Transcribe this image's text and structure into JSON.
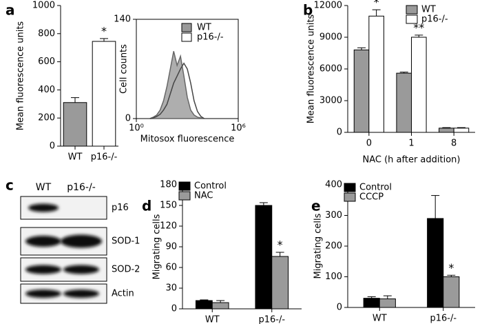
{
  "chart_data": [
    {
      "type": "bar",
      "panel": "a",
      "ylabel": "Mean fluorescence units",
      "categories": [
        "WT",
        "p16-/-"
      ],
      "series": [
        {
          "values": [
            310,
            745
          ],
          "errors": [
            35,
            20
          ],
          "colors": [
            "#9a9a9a",
            "#ffffff"
          ],
          "annotations": [
            null,
            "*"
          ]
        }
      ],
      "ylim": [
        0,
        1000
      ],
      "yticks": [
        0,
        200,
        400,
        600,
        800,
        1000
      ]
    },
    {
      "type": "line",
      "xlabel": "Mitosox fluorescence",
      "ylabel": "Cell counts",
      "xscale": "log",
      "x": [
        6.3,
        10,
        15.8,
        25.1,
        39.8,
        63.1,
        100,
        158,
        251,
        398,
        631,
        1000,
        1585,
        2512,
        3981,
        6310,
        10000
      ],
      "series": [
        {
          "name": "WT",
          "color": "#9a9a9a",
          "filled": true,
          "values": [
            0,
            2,
            5,
            12,
            25,
            45,
            70,
            95,
            75,
            88,
            60,
            30,
            12,
            5,
            2,
            1,
            0
          ]
        },
        {
          "name": "p16-/-",
          "color": "#444444",
          "filled": false,
          "values": [
            0,
            1,
            3,
            6,
            12,
            20,
            35,
            50,
            60,
            70,
            78,
            70,
            50,
            25,
            10,
            3,
            0
          ]
        }
      ],
      "xlim": [
        1,
        1000000
      ],
      "xticks": [
        {
          "value": 1,
          "label": "10⁰"
        },
        {
          "value": 1000000,
          "label": "10⁶"
        }
      ],
      "ylim": [
        0,
        140
      ],
      "yticks": [
        0,
        140
      ],
      "legend": "upper right"
    },
    {
      "type": "bar",
      "panel": "b",
      "ylabel": "Mean fluorescence units",
      "xlabel": "NAC (h after addition)",
      "categories": [
        "0",
        "1",
        "8"
      ],
      "series": [
        {
          "name": "WT",
          "color": "#9a9a9a",
          "values": [
            7800,
            5600,
            400
          ],
          "errors": [
            200,
            100,
            50
          ],
          "annotations": [
            null,
            null,
            null
          ]
        },
        {
          "name": "p16-/-",
          "color": "#ffffff",
          "values": [
            11000,
            9000,
            400
          ],
          "errors": [
            600,
            200,
            50
          ],
          "annotations": [
            "*",
            "**",
            null
          ]
        }
      ],
      "ylim": [
        0,
        12000
      ],
      "yticks": [
        0,
        3000,
        6000,
        9000,
        12000
      ],
      "legend": "upper right"
    },
    {
      "type": "bar",
      "panel": "d",
      "ylabel": "Migrating cells",
      "categories": [
        "WT",
        "p16-/-"
      ],
      "series": [
        {
          "name": "Control",
          "color": "#000000",
          "values": [
            12,
            150
          ],
          "errors": [
            1,
            4
          ],
          "annotations": [
            null,
            null
          ]
        },
        {
          "name": "NAC",
          "color": "#9a9a9a",
          "values": [
            9,
            76
          ],
          "errors": [
            3,
            6
          ],
          "annotations": [
            null,
            "*"
          ]
        }
      ],
      "ylim": [
        0,
        180
      ],
      "yticks": [
        0,
        30,
        60,
        90,
        120,
        150,
        180
      ],
      "legend": "upper left"
    },
    {
      "type": "bar",
      "panel": "e",
      "ylabel": "Migrating cells",
      "categories": [
        "WT",
        "p16-/-"
      ],
      "series": [
        {
          "name": "Control",
          "color": "#000000",
          "values": [
            30,
            290
          ],
          "errors": [
            5,
            75
          ],
          "annotations": [
            null,
            null
          ]
        },
        {
          "name": "CCCP",
          "color": "#9a9a9a",
          "values": [
            28,
            100
          ],
          "errors": [
            10,
            5
          ],
          "annotations": [
            null,
            "*"
          ]
        }
      ],
      "ylim": [
        0,
        400
      ],
      "yticks": [
        0,
        100,
        200,
        300,
        400
      ],
      "legend": "upper left"
    }
  ],
  "blot": {
    "panel": "c",
    "columns": [
      "WT",
      "p16-/-"
    ],
    "rows": [
      "p16",
      "SOD-1",
      "SOD-2",
      "Actin"
    ]
  }
}
